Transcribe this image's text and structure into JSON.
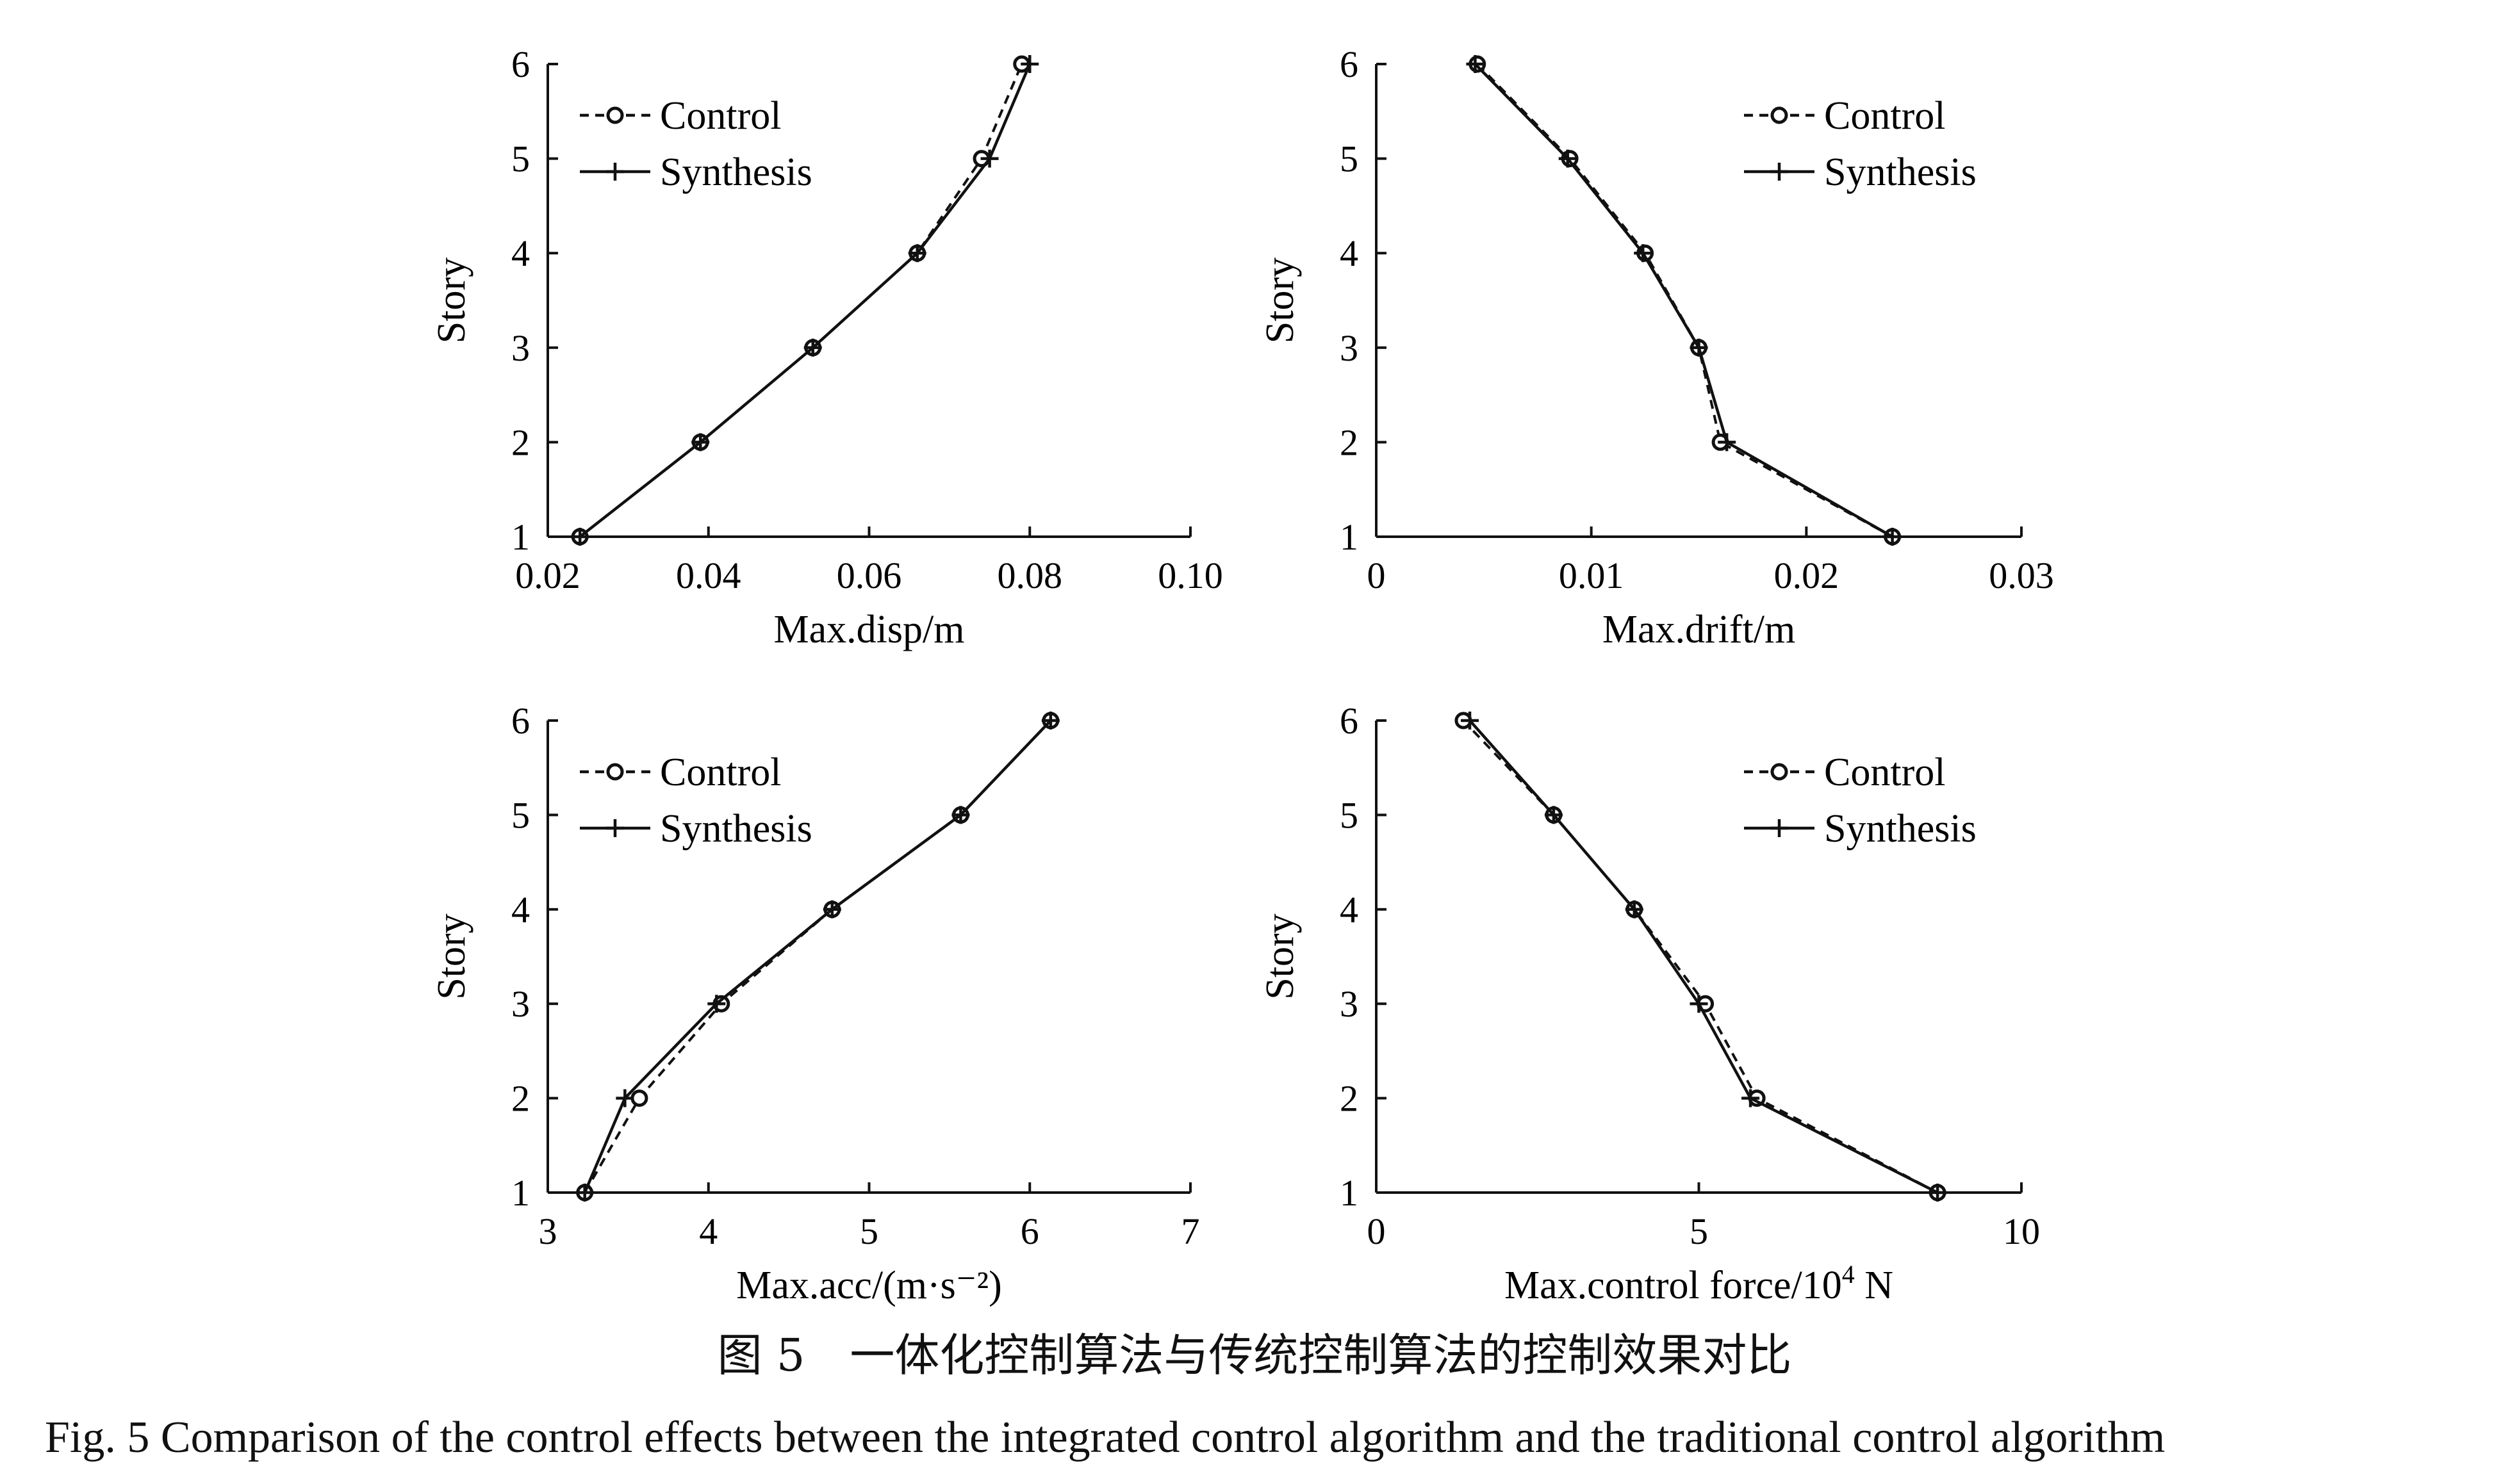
{
  "chart_data": [
    {
      "type": "line",
      "xlabel": "Max.disp/m",
      "ylabel": "Story",
      "xlim": [
        0.02,
        0.1
      ],
      "ylim": [
        1,
        6
      ],
      "xticks": [
        "0.02",
        "0.04",
        "0.06",
        "0.08",
        "0.10"
      ],
      "yticks": [
        "1",
        "2",
        "3",
        "4",
        "5",
        "6"
      ],
      "legend_position": "top-left",
      "series": [
        {
          "name": "Control",
          "style": "dashed-circle",
          "x": [
            0.024,
            0.039,
            0.053,
            0.066,
            0.074,
            0.079
          ],
          "y": [
            1,
            2,
            3,
            4,
            5,
            6
          ]
        },
        {
          "name": "Synthesis",
          "style": "solid-plus",
          "x": [
            0.024,
            0.039,
            0.053,
            0.066,
            0.075,
            0.08
          ],
          "y": [
            1,
            2,
            3,
            4,
            5,
            6
          ]
        }
      ]
    },
    {
      "type": "line",
      "xlabel": "Max.drift/m",
      "ylabel": "Story",
      "xlim": [
        0,
        0.03
      ],
      "ylim": [
        1,
        6
      ],
      "xticks": [
        "0",
        "0.01",
        "0.02",
        "0.03"
      ],
      "yticks": [
        "1",
        "2",
        "3",
        "4",
        "5",
        "6"
      ],
      "legend_position": "top-right",
      "series": [
        {
          "name": "Control",
          "style": "dashed-circle",
          "x": [
            0.024,
            0.016,
            0.015,
            0.0125,
            0.009,
            0.0047
          ],
          "y": [
            1,
            2,
            3,
            4,
            5,
            6
          ]
        },
        {
          "name": "Synthesis",
          "style": "solid-plus",
          "x": [
            0.024,
            0.0163,
            0.015,
            0.0124,
            0.0089,
            0.0046
          ],
          "y": [
            1,
            2,
            3,
            4,
            5,
            6
          ]
        }
      ]
    },
    {
      "type": "line",
      "xlabel": "Max.acc/(m·s⁻²)",
      "ylabel": "Story",
      "xlim": [
        3,
        7
      ],
      "ylim": [
        1,
        6
      ],
      "xticks": [
        "3",
        "4",
        "5",
        "6",
        "7"
      ],
      "yticks": [
        "1",
        "2",
        "3",
        "4",
        "5",
        "6"
      ],
      "legend_position": "top-left",
      "series": [
        {
          "name": "Control",
          "style": "dashed-circle",
          "x": [
            3.23,
            3.57,
            4.08,
            4.77,
            5.57,
            6.13
          ],
          "y": [
            1,
            2,
            3,
            4,
            5,
            6
          ]
        },
        {
          "name": "Synthesis",
          "style": "solid-plus",
          "x": [
            3.23,
            3.48,
            4.05,
            4.77,
            5.57,
            6.13
          ],
          "y": [
            1,
            2,
            3,
            4,
            5,
            6
          ]
        }
      ]
    },
    {
      "type": "line",
      "xlabel": "Max.control force/10",
      "xlabel_sup": "4",
      "xlabel_unit": " N",
      "ylabel": "Story",
      "xlim": [
        0,
        10
      ],
      "ylim": [
        1,
        6
      ],
      "xticks": [
        "0",
        "5",
        "10"
      ],
      "yticks": [
        "1",
        "2",
        "3",
        "4",
        "5",
        "6"
      ],
      "legend_position": "top-right",
      "series": [
        {
          "name": "Control",
          "style": "dashed-circle",
          "x": [
            8.7,
            5.9,
            5.1,
            4.0,
            2.75,
            1.35
          ],
          "y": [
            1,
            2,
            3,
            4,
            5,
            6
          ]
        },
        {
          "name": "Synthesis",
          "style": "solid-plus",
          "x": [
            8.7,
            5.8,
            5.0,
            4.0,
            2.75,
            1.45
          ],
          "y": [
            1,
            2,
            3,
            4,
            5,
            6
          ]
        }
      ]
    }
  ],
  "caption": {
    "cn": "图 5　一体化控制算法与传统控制算法的控制效果对比",
    "en": "Fig. 5   Comparison of the control effects between the integrated control algorithm and the traditional control algorithm"
  }
}
